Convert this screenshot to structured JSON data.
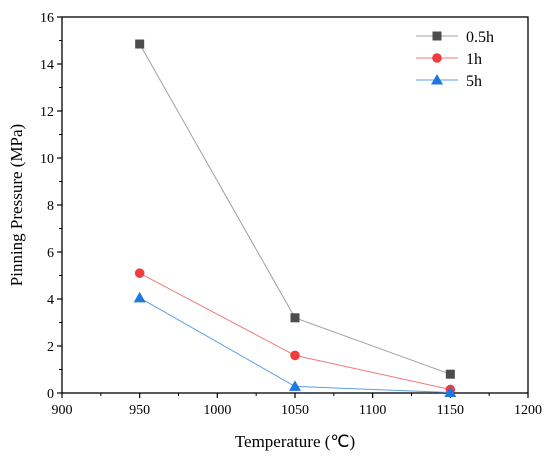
{
  "chart_data": {
    "type": "line",
    "xlabel": "Temperature (℃)",
    "ylabel": "Pinning Pressure (MPa)",
    "xlim": [
      900,
      1200
    ],
    "ylim": [
      0,
      16
    ],
    "x_ticks": [
      900,
      950,
      1000,
      1050,
      1100,
      1150,
      1200
    ],
    "y_ticks": [
      0,
      2,
      4,
      6,
      8,
      10,
      12,
      14,
      16
    ],
    "x_tick_labels": [
      "900",
      "950",
      "1000",
      "1050",
      "1100",
      "1150",
      "1200"
    ],
    "y_tick_labels": [
      "0",
      "2",
      "4",
      "6",
      "8",
      "10",
      "12",
      "14",
      "16"
    ],
    "x": [
      950,
      1050,
      1150
    ],
    "series": [
      {
        "name": "0.5h",
        "values": [
          14.85,
          3.2,
          0.8
        ],
        "color": "#4d4d4d",
        "line_color": "#a0a0a0",
        "marker": "square"
      },
      {
        "name": "1h",
        "values": [
          5.1,
          1.6,
          0.15
        ],
        "color": "#f03c3c",
        "line_color": "#f07a7a",
        "marker": "circle"
      },
      {
        "name": "5h",
        "values": [
          4.05,
          0.28,
          0.02
        ],
        "color": "#1f78e0",
        "line_color": "#5aa0e8",
        "marker": "triangle"
      }
    ],
    "grid": false,
    "legend_position": "top-right"
  }
}
